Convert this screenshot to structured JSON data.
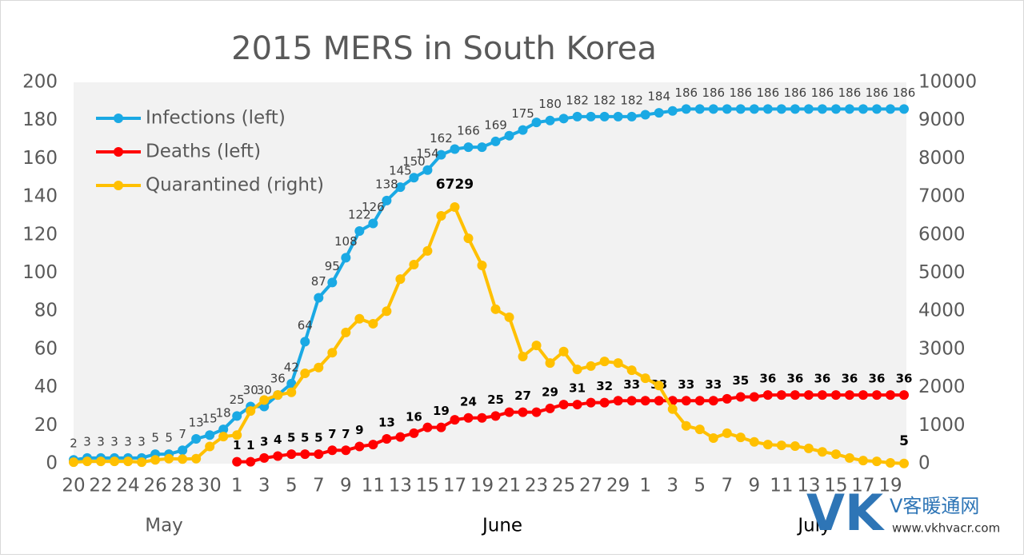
{
  "chart_data": {
    "type": "line",
    "title": "2015 MERS in South Korea",
    "categories": [
      "20",
      null,
      "22",
      null,
      "24",
      null,
      "26",
      null,
      "28",
      null,
      "30",
      null,
      "1",
      null,
      "3",
      null,
      "5",
      null,
      "7",
      null,
      "9",
      null,
      "11",
      null,
      "13",
      null,
      "15",
      null,
      "17",
      null,
      "19",
      null,
      "21",
      null,
      "23",
      null,
      "25",
      null,
      "27",
      null,
      "29",
      null,
      "1",
      null,
      "3",
      null,
      "5",
      null,
      "7",
      null,
      "9",
      null,
      "11",
      null,
      "13",
      null,
      "15",
      null,
      "17",
      null,
      "19",
      null
    ],
    "months": [
      "May",
      "June",
      "July"
    ],
    "series": [
      {
        "name": "Infections (left)",
        "color": "#1aa9e4",
        "values": [
          2,
          3,
          3,
          3,
          3,
          3,
          5,
          5,
          7,
          13,
          15,
          18,
          25,
          30,
          30,
          36,
          42,
          64,
          87,
          95,
          108,
          122,
          126,
          138,
          145,
          150,
          154,
          162,
          165,
          166,
          166,
          169,
          172,
          175,
          179,
          180,
          181,
          182,
          182,
          182,
          182,
          182,
          183,
          184,
          185,
          186,
          186,
          186,
          186,
          186,
          186,
          186,
          186,
          186,
          186,
          186,
          186,
          186,
          186,
          186,
          186,
          186
        ],
        "value_labels": [
          "2",
          "3",
          "3",
          "3",
          "3",
          "3",
          "5",
          "5",
          "7",
          "13",
          "15",
          "18",
          "25",
          "30",
          "30",
          "36",
          "42",
          "64",
          "87",
          "95",
          "108",
          "122",
          "126",
          "138",
          "145",
          "150",
          "154",
          "162",
          null,
          "166",
          null,
          "169",
          null,
          "175",
          null,
          "180",
          null,
          "182",
          null,
          "182",
          null,
          "182",
          null,
          "184",
          null,
          "186",
          null,
          "186",
          null,
          "186",
          null,
          "186",
          null,
          "186",
          null,
          "186",
          null,
          "186",
          null,
          "186",
          null,
          "186"
        ]
      },
      {
        "name": "Deaths (left)",
        "color": "#ff0000",
        "values": [
          null,
          null,
          null,
          null,
          null,
          null,
          null,
          null,
          null,
          null,
          null,
          null,
          1,
          1,
          3,
          4,
          5,
          5,
          5,
          7,
          7,
          9,
          10,
          13,
          14,
          16,
          19,
          19,
          23,
          24,
          24,
          25,
          27,
          27,
          27,
          29,
          31,
          31,
          32,
          32,
          33,
          33,
          33,
          33,
          33,
          33,
          33,
          33,
          34,
          35,
          35,
          36,
          36,
          36,
          36,
          36,
          36,
          36,
          36,
          36,
          36,
          36
        ],
        "value_labels": [
          null,
          null,
          null,
          null,
          null,
          null,
          null,
          null,
          null,
          null,
          null,
          null,
          "1",
          "1",
          "3",
          "4",
          "5",
          "5",
          "5",
          "7",
          "7",
          "9",
          null,
          "13",
          null,
          "16",
          null,
          "19",
          null,
          "24",
          null,
          "25",
          null,
          "27",
          null,
          "29",
          null,
          "31",
          null,
          "32",
          null,
          "33",
          null,
          "33",
          null,
          "33",
          null,
          "33",
          null,
          "35",
          null,
          "36",
          null,
          "36",
          null,
          "36",
          null,
          "36",
          null,
          "36",
          null,
          "36"
        ]
      },
      {
        "name": "Quarantined (right)",
        "color": "#ffc000",
        "axis": "y2",
        "values": [
          40,
          60,
          60,
          60,
          60,
          40,
          100,
          130,
          120,
          130,
          450,
          710,
          750,
          1380,
          1670,
          1800,
          1870,
          2370,
          2520,
          2910,
          3440,
          3800,
          3670,
          4000,
          4840,
          5220,
          5580,
          6500,
          6729,
          5910,
          5200,
          4050,
          3840,
          2810,
          3100,
          2640,
          2940,
          2470,
          2560,
          2680,
          2640,
          2450,
          2240,
          2050,
          1430,
          990,
          900,
          670,
          800,
          690,
          570,
          500,
          480,
          460,
          400,
          310,
          250,
          150,
          80,
          60,
          20,
          5
        ],
        "value_labels": [
          null,
          null,
          null,
          null,
          null,
          null,
          null,
          null,
          null,
          null,
          null,
          null,
          null,
          null,
          null,
          null,
          null,
          null,
          null,
          null,
          null,
          null,
          null,
          null,
          null,
          null,
          null,
          null,
          "6729",
          null,
          null,
          null,
          null,
          null,
          null,
          null,
          null,
          null,
          null,
          null,
          null,
          null,
          null,
          null,
          null,
          null,
          null,
          null,
          null,
          null,
          null,
          null,
          null,
          null,
          null,
          null,
          null,
          null,
          null,
          null,
          null,
          "5"
        ]
      }
    ],
    "ylim": [
      0,
      200
    ],
    "yticks": [
      0,
      20,
      40,
      60,
      80,
      100,
      120,
      140,
      160,
      180,
      200
    ],
    "y2lim": [
      0,
      10000
    ],
    "y2ticks": [
      0,
      1000,
      2000,
      3000,
      4000,
      5000,
      6000,
      7000,
      8000,
      9000,
      10000
    ],
    "legend": "upper-left",
    "grid": false
  },
  "watermark": {
    "logo": "VK",
    "name": "V客暖通网",
    "url": "www.vkhvacr.com"
  }
}
